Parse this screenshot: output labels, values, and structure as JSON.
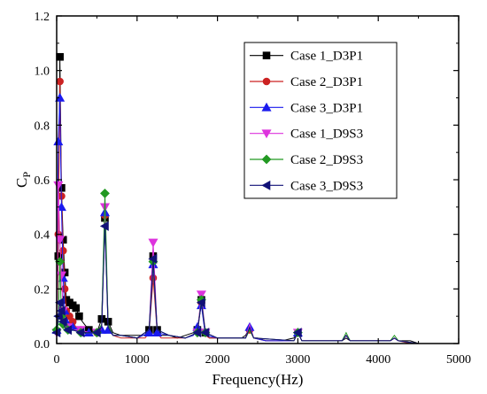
{
  "chart_data": {
    "type": "line",
    "xlabel": "Frequency(Hz)",
    "ylabel_main": "C",
    "ylabel_sub": "P",
    "xlim": [
      0,
      5000
    ],
    "ylim": [
      0,
      1.2
    ],
    "xticks": [
      0,
      1000,
      2000,
      3000,
      4000,
      5000
    ],
    "yticks": [
      0.0,
      0.2,
      0.4,
      0.6,
      0.8,
      1.0,
      1.2
    ],
    "xtick_labels": [
      "0",
      "1000",
      "2000",
      "3000",
      "4000",
      "5000"
    ],
    "ytick_labels": [
      "0.0",
      "0.2",
      "0.4",
      "0.6",
      "0.8",
      "1.0",
      "1.2"
    ],
    "grid": false,
    "legend_position": "top-right",
    "series": [
      {
        "name": "Case 1_D3P1",
        "color": "#000000",
        "marker": "square",
        "x": [
          0,
          20,
          40,
          60,
          80,
          100,
          120,
          160,
          200,
          240,
          280,
          320,
          400,
          500,
          560,
          600,
          640,
          700,
          800,
          900,
          1000,
          1100,
          1150,
          1200,
          1250,
          1300,
          1400,
          1500,
          1600,
          1700,
          1750,
          1800,
          1850,
          1900,
          2000,
          2100,
          2200,
          2300,
          2350,
          2400,
          2450,
          2500,
          2600,
          2800,
          2950,
          3000,
          3050,
          3200,
          3400,
          3550,
          3600,
          3650,
          3800,
          4000,
          4150,
          4200,
          4250,
          4400,
          4500
        ],
        "y": [
          0.02,
          0.32,
          1.05,
          0.57,
          0.38,
          0.26,
          0.16,
          0.15,
          0.14,
          0.13,
          0.1,
          0.08,
          0.05,
          0.04,
          0.09,
          0.46,
          0.08,
          0.04,
          0.03,
          0.03,
          0.03,
          0.03,
          0.05,
          0.32,
          0.05,
          0.03,
          0.03,
          0.02,
          0.03,
          0.04,
          0.05,
          0.16,
          0.04,
          0.02,
          0.02,
          0.02,
          0.02,
          0.02,
          0.03,
          0.06,
          0.02,
          0.02,
          0.01,
          0.01,
          0.02,
          0.04,
          0.01,
          0.01,
          0.01,
          0.01,
          0.02,
          0.01,
          0.01,
          0.01,
          0.01,
          0.02,
          0.01,
          0.01,
          0.0
        ]
      },
      {
        "name": "Case 2_D3P1",
        "color": "#cc2222",
        "marker": "circle",
        "x": [
          0,
          20,
          40,
          60,
          80,
          100,
          120,
          160,
          200,
          240,
          300,
          400,
          500,
          560,
          600,
          640,
          700,
          800,
          900,
          1000,
          1100,
          1150,
          1200,
          1250,
          1300,
          1400,
          1600,
          1750,
          1800,
          1850,
          1900,
          2000,
          2200,
          2350,
          2400,
          2450,
          2600,
          2950,
          3000,
          3050,
          3200,
          3550,
          3600,
          3650,
          3800,
          4150,
          4200,
          4250,
          4400,
          4500
        ],
        "y": [
          0.02,
          0.4,
          0.96,
          0.54,
          0.34,
          0.2,
          0.12,
          0.1,
          0.08,
          0.06,
          0.05,
          0.04,
          0.04,
          0.06,
          0.47,
          0.06,
          0.03,
          0.02,
          0.02,
          0.02,
          0.02,
          0.04,
          0.24,
          0.04,
          0.02,
          0.02,
          0.02,
          0.04,
          0.15,
          0.03,
          0.02,
          0.02,
          0.02,
          0.02,
          0.05,
          0.02,
          0.01,
          0.01,
          0.04,
          0.01,
          0.01,
          0.01,
          0.03,
          0.01,
          0.01,
          0.01,
          0.02,
          0.01,
          0.0,
          0.0
        ]
      },
      {
        "name": "Case 3_D3P1",
        "color": "#1a1aee",
        "marker": "triangle-up",
        "x": [
          0,
          20,
          40,
          60,
          80,
          100,
          120,
          160,
          200,
          300,
          400,
          500,
          560,
          600,
          640,
          700,
          800,
          1000,
          1150,
          1200,
          1250,
          1400,
          1600,
          1700,
          1750,
          1800,
          1850,
          2000,
          2200,
          2350,
          2400,
          2450,
          2600,
          2950,
          3000,
          3050,
          3200,
          3550,
          3600,
          3650,
          3800,
          4150,
          4200,
          4250,
          4500
        ],
        "y": [
          0.05,
          0.74,
          0.9,
          0.5,
          0.24,
          0.12,
          0.08,
          0.07,
          0.06,
          0.05,
          0.04,
          0.04,
          0.05,
          0.48,
          0.05,
          0.03,
          0.03,
          0.02,
          0.04,
          0.29,
          0.04,
          0.03,
          0.02,
          0.03,
          0.06,
          0.14,
          0.03,
          0.02,
          0.02,
          0.02,
          0.06,
          0.02,
          0.01,
          0.01,
          0.04,
          0.01,
          0.01,
          0.01,
          0.03,
          0.01,
          0.01,
          0.01,
          0.02,
          0.01,
          0.0
        ]
      },
      {
        "name": "Case 1_D9S3",
        "color": "#dd33dd",
        "marker": "triangle-down",
        "x": [
          0,
          20,
          40,
          60,
          80,
          100,
          140,
          200,
          300,
          400,
          500,
          560,
          600,
          640,
          700,
          800,
          1000,
          1150,
          1200,
          1250,
          1400,
          1600,
          1750,
          1800,
          1850,
          2000,
          2350,
          2400,
          2450,
          2950,
          3000,
          3050,
          3550,
          3600,
          3650,
          4150,
          4200,
          4250,
          4500
        ],
        "y": [
          0.04,
          0.58,
          0.38,
          0.25,
          0.12,
          0.08,
          0.06,
          0.05,
          0.05,
          0.04,
          0.04,
          0.06,
          0.5,
          0.06,
          0.03,
          0.03,
          0.02,
          0.05,
          0.37,
          0.05,
          0.03,
          0.02,
          0.04,
          0.18,
          0.04,
          0.02,
          0.02,
          0.07,
          0.02,
          0.01,
          0.04,
          0.01,
          0.01,
          0.03,
          0.01,
          0.01,
          0.02,
          0.01,
          0.0
        ]
      },
      {
        "name": "Case 2_D9S3",
        "color": "#229922",
        "marker": "diamond",
        "x": [
          0,
          20,
          40,
          60,
          80,
          100,
          140,
          200,
          300,
          400,
          500,
          560,
          600,
          640,
          700,
          800,
          1000,
          1150,
          1200,
          1250,
          1400,
          1600,
          1750,
          1800,
          1850,
          2000,
          2350,
          2400,
          2450,
          2950,
          3000,
          3050,
          3550,
          3600,
          3650,
          4150,
          4200,
          4250,
          4500
        ],
        "y": [
          0.05,
          0.07,
          0.3,
          0.1,
          0.07,
          0.06,
          0.05,
          0.05,
          0.04,
          0.04,
          0.04,
          0.07,
          0.55,
          0.07,
          0.03,
          0.03,
          0.02,
          0.05,
          0.3,
          0.05,
          0.03,
          0.02,
          0.04,
          0.16,
          0.04,
          0.02,
          0.02,
          0.05,
          0.02,
          0.01,
          0.04,
          0.01,
          0.01,
          0.04,
          0.01,
          0.01,
          0.03,
          0.01,
          0.0
        ]
      },
      {
        "name": "Case 3_D9S3",
        "color": "#111177",
        "marker": "triangle-left",
        "x": [
          0,
          20,
          40,
          60,
          80,
          100,
          140,
          200,
          300,
          400,
          500,
          560,
          600,
          640,
          700,
          800,
          1000,
          1150,
          1200,
          1250,
          1400,
          1600,
          1750,
          1800,
          1850,
          2000,
          2350,
          2400,
          2450,
          2950,
          3000,
          3050,
          3550,
          3600,
          3650,
          4150,
          4200,
          4250,
          4500
        ],
        "y": [
          0.04,
          0.1,
          0.15,
          0.12,
          0.08,
          0.06,
          0.05,
          0.05,
          0.04,
          0.04,
          0.04,
          0.06,
          0.43,
          0.06,
          0.03,
          0.03,
          0.02,
          0.05,
          0.31,
          0.05,
          0.03,
          0.02,
          0.04,
          0.15,
          0.04,
          0.02,
          0.02,
          0.06,
          0.02,
          0.01,
          0.04,
          0.01,
          0.01,
          0.03,
          0.01,
          0.01,
          0.02,
          0.01,
          0.0
        ]
      }
    ]
  }
}
